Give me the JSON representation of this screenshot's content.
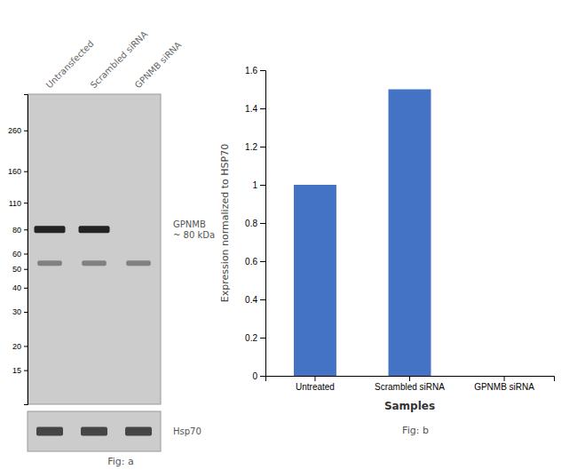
{
  "chart_data": [
    {
      "type": "bar",
      "title": "Fig: b",
      "categories": [
        "Untreated",
        "Scrambled siRNA",
        "GPNMB siRNA"
      ],
      "values": [
        1.0,
        1.5,
        0.0
      ],
      "color": "#4472c4",
      "xlabel": "Samples",
      "ylabel": "Expression normalized to HSP70",
      "ylim": [
        0,
        1.6
      ],
      "yticks": [
        0,
        0.2,
        0.4,
        0.6,
        0.8,
        1.0,
        1.2,
        1.4,
        1.6
      ]
    },
    {
      "type": "blot",
      "title": "Fig: a",
      "categories": [
        "Untransfected",
        "Scrambled siRNA",
        "GPNMB siRNA"
      ],
      "log": "y",
      "ylim": [
        10,
        400
      ],
      "yticks": [
        260,
        160,
        110,
        80,
        60,
        50,
        40,
        30,
        20,
        15
      ],
      "series": [
        {
          "name": "GPNMB\n~ 80 kDa",
          "color": "#111111",
          "values": [
            80,
            80,
            null
          ]
        }
      ],
      "annotations": [
        "Hsp70"
      ]
    }
  ]
}
